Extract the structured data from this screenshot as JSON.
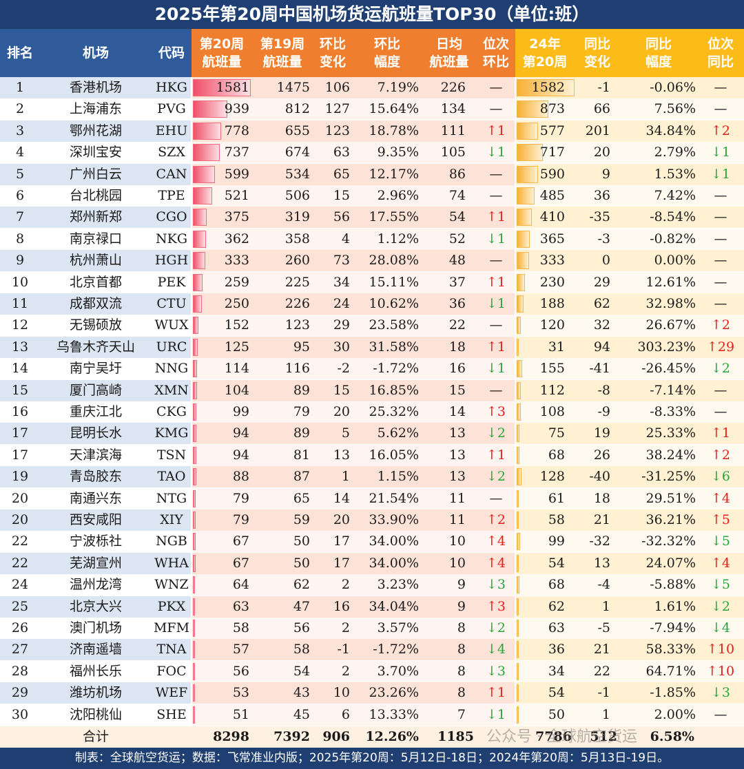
{
  "title": "2025年第20周中国机场货运航班量TOP30（单位:班）",
  "headers": {
    "rank": "排名",
    "airport": "机场",
    "code": "代码",
    "w20": "第20周\n航班量",
    "w19": "第19周\n航班量",
    "wow_change": "环比\n变化",
    "wow_pct": "环比\n幅度",
    "daily": "日均\n航班量",
    "rank_wow": "位次\n环比",
    "y24w20": "24年\n第20周",
    "yoy_change": "同比\n变化",
    "yoy_pct": "同比\n幅度",
    "rank_yoy": "位次\n同比"
  },
  "colors": {
    "title_bg": "#1f3f73",
    "blue_header": "#2f5b9b",
    "orange_header": "#ef7f2e",
    "yellow_header": "#fbbc1a",
    "up": "#e51b1b",
    "down": "#27a43b"
  },
  "rows": [
    {
      "rank": "1",
      "airport": "香港机场",
      "code": "HKG",
      "w20": "1581",
      "w19": "1475",
      "wow_change": "106",
      "wow_pct": "7.19%",
      "daily": "226",
      "rank_wow": "—",
      "y24": "1582",
      "yoy_change": "-1",
      "yoy_pct": "-0.06%",
      "rank_yoy": "—"
    },
    {
      "rank": "2",
      "airport": "上海浦东",
      "code": "PVG",
      "w20": "939",
      "w19": "812",
      "wow_change": "127",
      "wow_pct": "15.64%",
      "daily": "134",
      "rank_wow": "—",
      "y24": "873",
      "yoy_change": "66",
      "yoy_pct": "7.56%",
      "rank_yoy": "—"
    },
    {
      "rank": "3",
      "airport": "鄂州花湖",
      "code": "EHU",
      "w20": "778",
      "w19": "655",
      "wow_change": "123",
      "wow_pct": "18.78%",
      "daily": "111",
      "rank_wow": "↑1",
      "y24": "577",
      "yoy_change": "201",
      "yoy_pct": "34.84%",
      "rank_yoy": "↑2"
    },
    {
      "rank": "4",
      "airport": "深圳宝安",
      "code": "SZX",
      "w20": "737",
      "w19": "674",
      "wow_change": "63",
      "wow_pct": "9.35%",
      "daily": "105",
      "rank_wow": "↓1",
      "y24": "717",
      "yoy_change": "20",
      "yoy_pct": "2.79%",
      "rank_yoy": "↓1"
    },
    {
      "rank": "5",
      "airport": "广州白云",
      "code": "CAN",
      "w20": "599",
      "w19": "534",
      "wow_change": "65",
      "wow_pct": "12.17%",
      "daily": "86",
      "rank_wow": "—",
      "y24": "590",
      "yoy_change": "9",
      "yoy_pct": "1.53%",
      "rank_yoy": "↓1"
    },
    {
      "rank": "6",
      "airport": "台北桃园",
      "code": "TPE",
      "w20": "521",
      "w19": "506",
      "wow_change": "15",
      "wow_pct": "2.96%",
      "daily": "74",
      "rank_wow": "—",
      "y24": "485",
      "yoy_change": "36",
      "yoy_pct": "7.42%",
      "rank_yoy": "—"
    },
    {
      "rank": "7",
      "airport": "郑州新郑",
      "code": "CGO",
      "w20": "375",
      "w19": "319",
      "wow_change": "56",
      "wow_pct": "17.55%",
      "daily": "54",
      "rank_wow": "↑1",
      "y24": "410",
      "yoy_change": "-35",
      "yoy_pct": "-8.54%",
      "rank_yoy": "—"
    },
    {
      "rank": "8",
      "airport": "南京禄口",
      "code": "NKG",
      "w20": "362",
      "w19": "358",
      "wow_change": "4",
      "wow_pct": "1.12%",
      "daily": "52",
      "rank_wow": "↓1",
      "y24": "365",
      "yoy_change": "-3",
      "yoy_pct": "-0.82%",
      "rank_yoy": "—"
    },
    {
      "rank": "9",
      "airport": "杭州萧山",
      "code": "HGH",
      "w20": "333",
      "w19": "260",
      "wow_change": "73",
      "wow_pct": "28.08%",
      "daily": "48",
      "rank_wow": "—",
      "y24": "333",
      "yoy_change": "0",
      "yoy_pct": "0.00%",
      "rank_yoy": "—"
    },
    {
      "rank": "10",
      "airport": "北京首都",
      "code": "PEK",
      "w20": "259",
      "w19": "225",
      "wow_change": "34",
      "wow_pct": "15.11%",
      "daily": "37",
      "rank_wow": "↑1",
      "y24": "230",
      "yoy_change": "29",
      "yoy_pct": "12.61%",
      "rank_yoy": "—"
    },
    {
      "rank": "11",
      "airport": "成都双流",
      "code": "CTU",
      "w20": "250",
      "w19": "226",
      "wow_change": "24",
      "wow_pct": "10.62%",
      "daily": "36",
      "rank_wow": "↓1",
      "y24": "188",
      "yoy_change": "62",
      "yoy_pct": "32.98%",
      "rank_yoy": "—"
    },
    {
      "rank": "12",
      "airport": "无锡硕放",
      "code": "WUX",
      "w20": "152",
      "w19": "123",
      "wow_change": "29",
      "wow_pct": "23.58%",
      "daily": "22",
      "rank_wow": "—",
      "y24": "120",
      "yoy_change": "32",
      "yoy_pct": "26.67%",
      "rank_yoy": "↑2"
    },
    {
      "rank": "13",
      "airport": "乌鲁木齐天山",
      "code": "URC",
      "w20": "125",
      "w19": "95",
      "wow_change": "30",
      "wow_pct": "31.58%",
      "daily": "18",
      "rank_wow": "↑1",
      "y24": "31",
      "yoy_change": "94",
      "yoy_pct": "303.23%",
      "rank_yoy": "↑29"
    },
    {
      "rank": "14",
      "airport": "南宁吴圩",
      "code": "NNG",
      "w20": "114",
      "w19": "116",
      "wow_change": "-2",
      "wow_pct": "-1.72%",
      "daily": "16",
      "rank_wow": "↓1",
      "y24": "155",
      "yoy_change": "-41",
      "yoy_pct": "-26.45%",
      "rank_yoy": "↓2"
    },
    {
      "rank": "15",
      "airport": "厦门高崎",
      "code": "XMN",
      "w20": "104",
      "w19": "89",
      "wow_change": "15",
      "wow_pct": "16.85%",
      "daily": "15",
      "rank_wow": "—",
      "y24": "112",
      "yoy_change": "-8",
      "yoy_pct": "-7.14%",
      "rank_yoy": "—"
    },
    {
      "rank": "16",
      "airport": "重庆江北",
      "code": "CKG",
      "w20": "99",
      "w19": "79",
      "wow_change": "20",
      "wow_pct": "25.32%",
      "daily": "14",
      "rank_wow": "↑3",
      "y24": "108",
      "yoy_change": "-9",
      "yoy_pct": "-8.33%",
      "rank_yoy": "—"
    },
    {
      "rank": "17",
      "airport": "昆明长水",
      "code": "KMG",
      "w20": "94",
      "w19": "89",
      "wow_change": "5",
      "wow_pct": "5.62%",
      "daily": "13",
      "rank_wow": "↓2",
      "y24": "75",
      "yoy_change": "19",
      "yoy_pct": "25.33%",
      "rank_yoy": "↑1"
    },
    {
      "rank": "17",
      "airport": "天津滨海",
      "code": "TSN",
      "w20": "94",
      "w19": "81",
      "wow_change": "13",
      "wow_pct": "16.05%",
      "daily": "13",
      "rank_wow": "↑1",
      "y24": "68",
      "yoy_change": "26",
      "yoy_pct": "38.24%",
      "rank_yoy": "↑2"
    },
    {
      "rank": "19",
      "airport": "青岛胶东",
      "code": "TAO",
      "w20": "88",
      "w19": "87",
      "wow_change": "1",
      "wow_pct": "1.15%",
      "daily": "13",
      "rank_wow": "↓2",
      "y24": "128",
      "yoy_change": "-40",
      "yoy_pct": "-31.25%",
      "rank_yoy": "↓6"
    },
    {
      "rank": "20",
      "airport": "南通兴东",
      "code": "NTG",
      "w20": "79",
      "w19": "65",
      "wow_change": "14",
      "wow_pct": "21.54%",
      "daily": "11",
      "rank_wow": "—",
      "y24": "61",
      "yoy_change": "18",
      "yoy_pct": "29.51%",
      "rank_yoy": "↑4"
    },
    {
      "rank": "20",
      "airport": "西安咸阳",
      "code": "XIY",
      "w20": "79",
      "w19": "59",
      "wow_change": "20",
      "wow_pct": "33.90%",
      "daily": "11",
      "rank_wow": "↑2",
      "y24": "58",
      "yoy_change": "21",
      "yoy_pct": "36.21%",
      "rank_yoy": "↑5"
    },
    {
      "rank": "22",
      "airport": "宁波栎社",
      "code": "NGB",
      "w20": "67",
      "w19": "50",
      "wow_change": "17",
      "wow_pct": "34.00%",
      "daily": "10",
      "rank_wow": "↑4",
      "y24": "99",
      "yoy_change": "-32",
      "yoy_pct": "-32.32%",
      "rank_yoy": "↓5"
    },
    {
      "rank": "22",
      "airport": "芜湖宣州",
      "code": "WHA",
      "w20": "67",
      "w19": "50",
      "wow_change": "17",
      "wow_pct": "34.00%",
      "daily": "10",
      "rank_wow": "↑4",
      "y24": "54",
      "yoy_change": "13",
      "yoy_pct": "24.07%",
      "rank_yoy": "↑4"
    },
    {
      "rank": "24",
      "airport": "温州龙湾",
      "code": "WNZ",
      "w20": "64",
      "w19": "62",
      "wow_change": "2",
      "wow_pct": "3.23%",
      "daily": "9",
      "rank_wow": "↓3",
      "y24": "68",
      "yoy_change": "-4",
      "yoy_pct": "-5.88%",
      "rank_yoy": "↓5"
    },
    {
      "rank": "25",
      "airport": "北京大兴",
      "code": "PKX",
      "w20": "63",
      "w19": "47",
      "wow_change": "16",
      "wow_pct": "34.04%",
      "daily": "9",
      "rank_wow": "↑3",
      "y24": "62",
      "yoy_change": "1",
      "yoy_pct": "1.61%",
      "rank_yoy": "↓2"
    },
    {
      "rank": "26",
      "airport": "澳门机场",
      "code": "MFM",
      "w20": "58",
      "w19": "56",
      "wow_change": "2",
      "wow_pct": "3.57%",
      "daily": "8",
      "rank_wow": "↓2",
      "y24": "63",
      "yoy_change": "-5",
      "yoy_pct": "-7.94%",
      "rank_yoy": "↓4"
    },
    {
      "rank": "27",
      "airport": "济南遥墙",
      "code": "TNA",
      "w20": "57",
      "w19": "58",
      "wow_change": "-1",
      "wow_pct": "-1.72%",
      "daily": "8",
      "rank_wow": "↓4",
      "y24": "36",
      "yoy_change": "21",
      "yoy_pct": "58.33%",
      "rank_yoy": "↑10"
    },
    {
      "rank": "28",
      "airport": "福州长乐",
      "code": "FOC",
      "w20": "56",
      "w19": "54",
      "wow_change": "2",
      "wow_pct": "3.70%",
      "daily": "8",
      "rank_wow": "↓3",
      "y24": "34",
      "yoy_change": "22",
      "yoy_pct": "64.71%",
      "rank_yoy": "↑10"
    },
    {
      "rank": "29",
      "airport": "潍坊机场",
      "code": "WEF",
      "w20": "53",
      "w19": "43",
      "wow_change": "10",
      "wow_pct": "23.26%",
      "daily": "8",
      "rank_wow": "↑1",
      "y24": "54",
      "yoy_change": "-1",
      "yoy_pct": "-1.85%",
      "rank_yoy": "↓3"
    },
    {
      "rank": "30",
      "airport": "沈阳桃仙",
      "code": "SHE",
      "w20": "51",
      "w19": "45",
      "wow_change": "6",
      "wow_pct": "13.33%",
      "daily": "7",
      "rank_wow": "↓1",
      "y24": "50",
      "yoy_change": "1",
      "yoy_pct": "2.00%",
      "rank_yoy": "—"
    }
  ],
  "total": {
    "label": "合计",
    "w20": "8298",
    "w19": "7392",
    "wow_change": "906",
    "wow_pct": "12.26%",
    "daily": "1185",
    "y24": "7786",
    "yoy_change": "512",
    "yoy_pct": "6.58%"
  },
  "watermark": "公众号 · 全球航空货运",
  "footer": "制表：全球航空货运；数据：飞常准业内版；2025年第20周：5月12日-18日；2024年第20周：5月13日-19日。"
}
